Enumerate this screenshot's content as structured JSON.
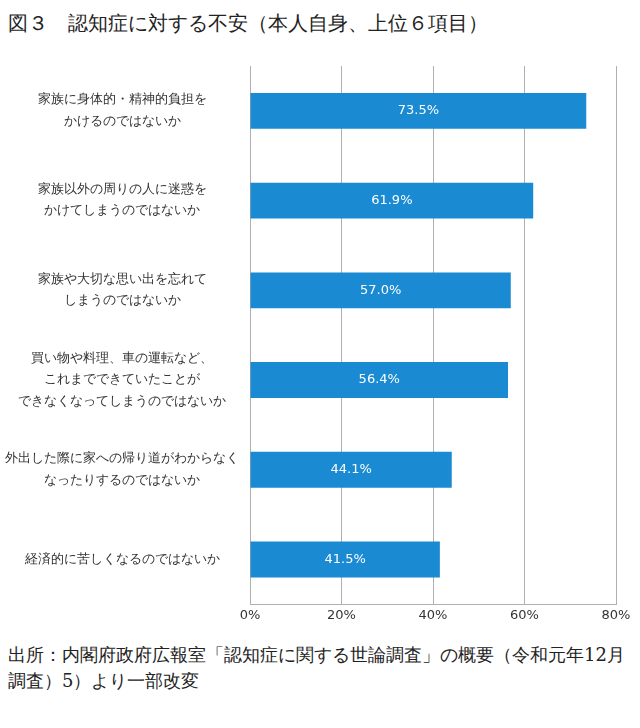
{
  "chart_data": {
    "type": "bar",
    "orientation": "horizontal",
    "title": "図３　認知症に対する不安（本人自身、上位６項目）",
    "note": "出所：内閣府政府広報室「認知症に関する世論調査」の概要（令和元年12月調査）5）より一部改変",
    "categories": [
      "家族に身体的・精神的負担を\nかけるのではないか",
      "家族以外の周りの人に迷惑を\nかけてしまうのではないか",
      "家族や大切な思い出を忘れて\nしまうのではないか",
      "買い物や料理、車の運転など、\nこれまでできていたことが\nできなくなってしまうのではないか",
      "外出した際に家への帰り道がわからなく\nなったりするのではないか",
      "経済的に苦しくなるのではないか"
    ],
    "values": [
      73.5,
      61.9,
      57.0,
      56.4,
      44.1,
      41.5
    ],
    "value_labels": [
      "73.5%",
      "61.9%",
      "57.0%",
      "56.4%",
      "44.1%",
      "41.5%"
    ],
    "color": "#1a8ad2",
    "xlim": [
      0,
      80
    ],
    "xticks": [
      {
        "value": 0,
        "label": "0%"
      },
      {
        "value": 20,
        "label": "20%"
      },
      {
        "value": 40,
        "label": "40%"
      },
      {
        "value": 60,
        "label": "60%"
      },
      {
        "value": 80,
        "label": "80%"
      }
    ],
    "grid": true,
    "data_labels": true
  }
}
